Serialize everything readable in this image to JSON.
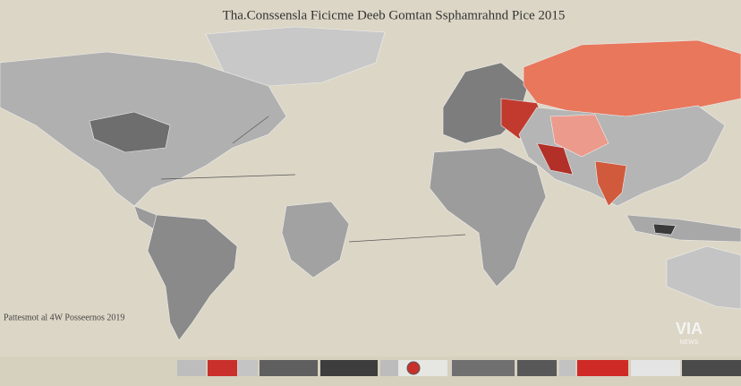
{
  "header": {
    "title": "Tha.Conssensla Ficicme Deeb Gomtan Ssphamrahnd Pice 2015"
  },
  "side_label": "Pattesmot al 4W Posseernos 2019",
  "watermark": {
    "logo": "VIA",
    "sub": "NEWS"
  }
}
